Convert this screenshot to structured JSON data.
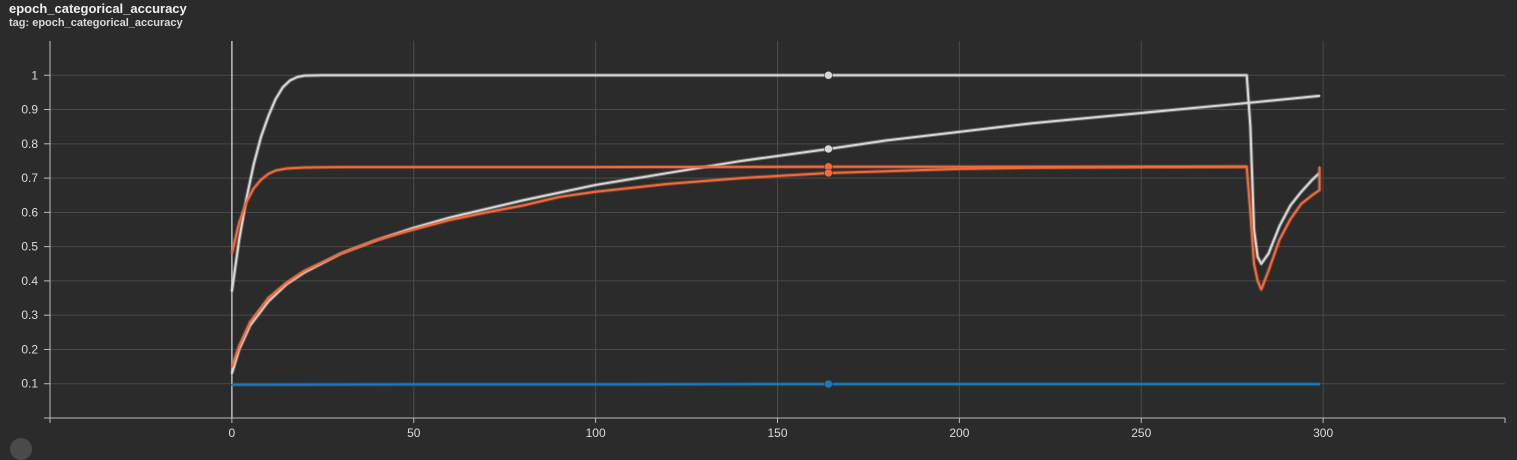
{
  "header": {
    "title": "epoch_categorical_accuracy",
    "tag": "tag: epoch_categorical_accuracy"
  },
  "chart_data": {
    "type": "line",
    "xlim": [
      -50,
      350
    ],
    "ylim": [
      0,
      1.1
    ],
    "x_ticks": [
      0,
      50,
      100,
      150,
      200,
      250,
      300
    ],
    "y_ticks": [
      0.1,
      0.2,
      0.3,
      0.4,
      0.5,
      0.6,
      0.7,
      0.8,
      0.9,
      1
    ],
    "grid": true,
    "hover_x": 164,
    "series": [
      {
        "color": "#d6d6d6",
        "points": [
          [
            0,
            0.37
          ],
          [
            2,
            0.52
          ],
          [
            4,
            0.64
          ],
          [
            6,
            0.74
          ],
          [
            8,
            0.82
          ],
          [
            10,
            0.88
          ],
          [
            12,
            0.93
          ],
          [
            14,
            0.965
          ],
          [
            16,
            0.985
          ],
          [
            18,
            0.995
          ],
          [
            20,
            0.999
          ],
          [
            25,
            1
          ],
          [
            100,
            1
          ],
          [
            164,
            1
          ],
          [
            250,
            1
          ],
          [
            279,
            1
          ],
          [
            280,
            0.85
          ],
          [
            281,
            0.55
          ],
          [
            282,
            0.47
          ],
          [
            283,
            0.45
          ],
          [
            285,
            0.48
          ],
          [
            288,
            0.56
          ],
          [
            291,
            0.62
          ],
          [
            294,
            0.66
          ],
          [
            297,
            0.695
          ],
          [
            299,
            0.715
          ]
        ],
        "markers": [
          [
            164,
            1
          ]
        ]
      },
      {
        "color": "#d6d6d6",
        "points": [
          [
            0,
            0.13
          ],
          [
            2,
            0.2
          ],
          [
            5,
            0.27
          ],
          [
            10,
            0.34
          ],
          [
            15,
            0.39
          ],
          [
            20,
            0.425
          ],
          [
            30,
            0.48
          ],
          [
            40,
            0.52
          ],
          [
            50,
            0.555
          ],
          [
            60,
            0.585
          ],
          [
            70,
            0.61
          ],
          [
            80,
            0.635
          ],
          [
            100,
            0.68
          ],
          [
            120,
            0.715
          ],
          [
            140,
            0.75
          ],
          [
            164,
            0.785
          ],
          [
            180,
            0.81
          ],
          [
            200,
            0.835
          ],
          [
            220,
            0.86
          ],
          [
            240,
            0.88
          ],
          [
            260,
            0.9
          ],
          [
            280,
            0.92
          ],
          [
            299,
            0.94
          ]
        ],
        "markers": [
          [
            164,
            0.785
          ]
        ]
      },
      {
        "color": "#f26a3c",
        "points": [
          [
            0,
            0.48
          ],
          [
            2,
            0.57
          ],
          [
            4,
            0.63
          ],
          [
            6,
            0.67
          ],
          [
            8,
            0.695
          ],
          [
            10,
            0.712
          ],
          [
            12,
            0.722
          ],
          [
            15,
            0.728
          ],
          [
            20,
            0.731
          ],
          [
            30,
            0.732
          ],
          [
            100,
            0.732
          ],
          [
            164,
            0.733
          ],
          [
            250,
            0.733
          ],
          [
            279,
            0.733
          ],
          [
            280,
            0.6
          ],
          [
            281,
            0.45
          ],
          [
            282,
            0.4
          ],
          [
            283,
            0.375
          ],
          [
            285,
            0.43
          ],
          [
            288,
            0.52
          ],
          [
            291,
            0.58
          ],
          [
            294,
            0.625
          ],
          [
            297,
            0.65
          ],
          [
            299,
            0.665
          ],
          [
            299,
            0.732
          ]
        ],
        "markers": [
          [
            164,
            0.733
          ]
        ]
      },
      {
        "color": "#f26a3c",
        "points": [
          [
            0,
            0.15
          ],
          [
            2,
            0.21
          ],
          [
            5,
            0.28
          ],
          [
            10,
            0.35
          ],
          [
            15,
            0.395
          ],
          [
            20,
            0.43
          ],
          [
            30,
            0.48
          ],
          [
            40,
            0.52
          ],
          [
            50,
            0.55
          ],
          [
            60,
            0.578
          ],
          [
            70,
            0.6
          ],
          [
            80,
            0.62
          ],
          [
            90,
            0.645
          ],
          [
            100,
            0.66
          ],
          [
            120,
            0.683
          ],
          [
            140,
            0.7
          ],
          [
            164,
            0.715
          ],
          [
            180,
            0.72
          ],
          [
            200,
            0.727
          ],
          [
            220,
            0.73
          ],
          [
            250,
            0.732
          ],
          [
            279,
            0.733
          ]
        ],
        "markers": [
          [
            164,
            0.715
          ]
        ]
      },
      {
        "color": "#1f77b4",
        "points": [
          [
            0,
            0.097
          ],
          [
            50,
            0.098
          ],
          [
            100,
            0.098
          ],
          [
            164,
            0.099
          ],
          [
            250,
            0.099
          ],
          [
            299,
            0.099
          ]
        ],
        "markers": [
          [
            164,
            0.099
          ]
        ]
      }
    ]
  }
}
